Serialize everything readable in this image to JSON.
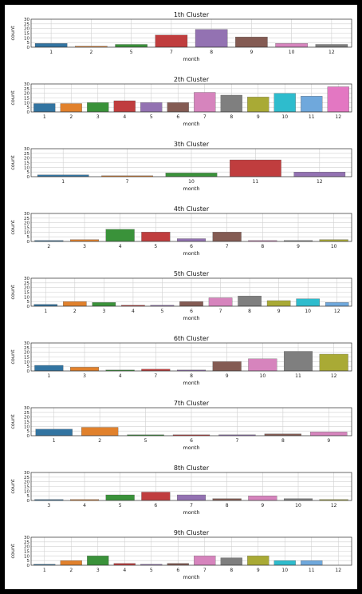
{
  "chart_data": [
    {
      "type": "bar",
      "title": "1th Cluster",
      "xlabel": "month",
      "ylabel": "count",
      "ylim": [
        0,
        30
      ],
      "yticks": [
        0,
        5,
        10,
        15,
        20,
        25,
        30
      ],
      "grid": true,
      "categories": [
        "1",
        "2",
        "5",
        "7",
        "8",
        "9",
        "10",
        "12"
      ],
      "values": [
        4,
        1,
        3,
        13,
        19,
        11,
        4,
        3
      ]
    },
    {
      "type": "bar",
      "title": "2th Cluster",
      "xlabel": "month",
      "ylabel": "count",
      "ylim": [
        0,
        30
      ],
      "yticks": [
        0,
        5,
        10,
        15,
        20,
        25,
        30
      ],
      "grid": true,
      "categories": [
        "1",
        "2",
        "3",
        "4",
        "5",
        "6",
        "7",
        "8",
        "9",
        "10",
        "11",
        "12"
      ],
      "values": [
        9,
        9,
        10,
        12,
        10,
        10,
        21,
        18,
        16,
        20,
        17,
        27
      ]
    },
    {
      "type": "bar",
      "title": "3th Cluster",
      "xlabel": "month",
      "ylabel": "count",
      "ylim": [
        0,
        30
      ],
      "yticks": [
        0,
        5,
        10,
        15,
        20,
        25,
        30
      ],
      "grid": true,
      "categories": [
        "1",
        "7",
        "10",
        "11",
        "12"
      ],
      "values": [
        2,
        1,
        4,
        18,
        5
      ]
    },
    {
      "type": "bar",
      "title": "4th Cluster",
      "xlabel": "month",
      "ylabel": "count",
      "ylim": [
        0,
        30
      ],
      "yticks": [
        0,
        5,
        10,
        15,
        20,
        25,
        30
      ],
      "grid": true,
      "categories": [
        "2",
        "3",
        "4",
        "5",
        "6",
        "7",
        "8",
        "9",
        "10"
      ],
      "values": [
        1,
        2,
        13,
        10,
        3,
        10,
        1,
        1,
        2
      ]
    },
    {
      "type": "bar",
      "title": "5th Cluster",
      "xlabel": "month",
      "ylabel": "count",
      "ylim": [
        0,
        30
      ],
      "yticks": [
        0,
        5,
        10,
        15,
        20,
        25,
        30
      ],
      "grid": true,
      "categories": [
        "1",
        "2",
        "3",
        "4",
        "5",
        "6",
        "7",
        "8",
        "9",
        "10",
        "12"
      ],
      "values": [
        2,
        5,
        4,
        1,
        1,
        5,
        9,
        11,
        6,
        8,
        4
      ]
    },
    {
      "type": "bar",
      "title": "6th Cluster",
      "xlabel": "month",
      "ylabel": "count",
      "ylim": [
        0,
        30
      ],
      "yticks": [
        0,
        5,
        10,
        15,
        20,
        25,
        30
      ],
      "grid": true,
      "categories": [
        "1",
        "3",
        "4",
        "7",
        "8",
        "9",
        "10",
        "11",
        "12"
      ],
      "values": [
        6,
        4,
        1,
        2,
        1,
        10,
        13,
        21,
        18
      ]
    },
    {
      "type": "bar",
      "title": "7th Cluster",
      "xlabel": "month",
      "ylabel": "count",
      "ylim": [
        0,
        30
      ],
      "yticks": [
        0,
        5,
        10,
        15,
        20,
        25,
        30
      ],
      "grid": true,
      "categories": [
        "1",
        "2",
        "5",
        "6",
        "7",
        "8",
        "9"
      ],
      "values": [
        7,
        9,
        1,
        1,
        1,
        2,
        4
      ]
    },
    {
      "type": "bar",
      "title": "8th Cluster",
      "xlabel": "month",
      "ylabel": "count",
      "ylim": [
        0,
        30
      ],
      "yticks": [
        0,
        5,
        10,
        15,
        20,
        25,
        30
      ],
      "grid": true,
      "categories": [
        "3",
        "4",
        "5",
        "6",
        "7",
        "8",
        "9",
        "10",
        "12"
      ],
      "values": [
        1,
        1,
        6,
        9,
        6,
        2,
        5,
        2,
        1
      ]
    },
    {
      "type": "bar",
      "title": "9th Cluster",
      "xlabel": "month",
      "ylabel": "count",
      "ylim": [
        0,
        30
      ],
      "yticks": [
        0,
        5,
        10,
        15,
        20,
        25,
        30
      ],
      "grid": true,
      "categories": [
        "1",
        "2",
        "3",
        "4",
        "5",
        "6",
        "7",
        "8",
        "9",
        "10",
        "11",
        "12"
      ],
      "values": [
        1,
        5,
        10,
        2,
        1,
        2,
        10,
        8,
        10,
        5,
        5,
        0
      ]
    }
  ],
  "colors": {
    "palette": [
      "#3274a1",
      "#e1812c",
      "#3a923a",
      "#c03d3e",
      "#9372b2",
      "#845b53",
      "#d684bd",
      "#7f7f7f",
      "#a9aa35",
      "#2ebccd",
      "#6fa8dc",
      "#e377c2"
    ],
    "edge": "#555555",
    "grid": "#d0d0d0",
    "background": "#000000",
    "panel": "#ffffff"
  }
}
